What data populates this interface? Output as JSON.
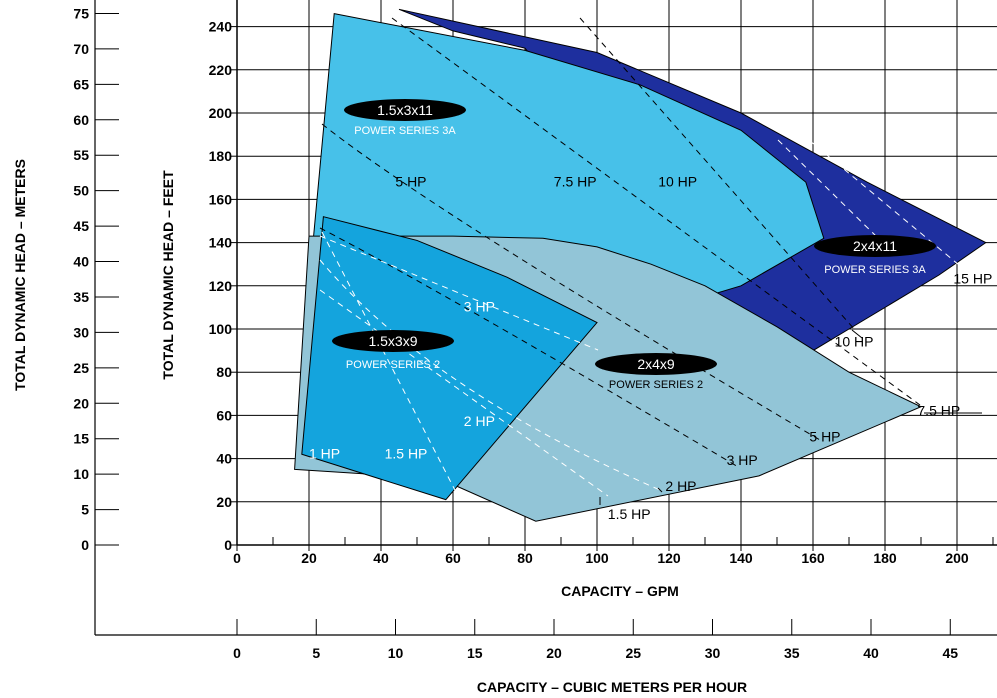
{
  "chart_data": {
    "type": "area",
    "xlabel": "CAPACITY – GPM",
    "ylabel": "TOTAL DYNAMIC HEAD – FEET",
    "secondary_xlabel": "CAPACITY – CUBIC METERS PER HOUR",
    "secondary_ylabel": "TOTAL DYNAMIC HEAD – METERS",
    "xlim": [
      0,
      210
    ],
    "ylim": [
      0,
      250
    ],
    "grid": true,
    "x_ticks": [
      "0",
      "20",
      "40",
      "60",
      "80",
      "100",
      "120",
      "140",
      "160",
      "180",
      "200"
    ],
    "y_ticks": [
      "0",
      "20",
      "40",
      "60",
      "80",
      "100",
      "120",
      "140",
      "160",
      "180",
      "200",
      "220",
      "240"
    ],
    "meters_ticks": [
      "0",
      "5",
      "10",
      "15",
      "20",
      "25",
      "30",
      "35",
      "40",
      "45",
      "50",
      "55",
      "60",
      "65",
      "70",
      "75"
    ],
    "m3h_ticks": [
      "0",
      "5",
      "10",
      "15",
      "20",
      "25",
      "30",
      "35",
      "40",
      "45"
    ],
    "regions": [
      {
        "model": "2x4x11",
        "series": "POWER SERIES 3A",
        "color": "#1e2f9e",
        "outline": [
          [
            45,
            248
          ],
          [
            100,
            228
          ],
          [
            140,
            200
          ],
          [
            175,
            168
          ],
          [
            208,
            140
          ],
          [
            195,
            125
          ],
          [
            170,
            100
          ],
          [
            160,
            90
          ],
          [
            150,
            90
          ],
          [
            140,
            92
          ],
          [
            130,
            100
          ],
          [
            120,
            120
          ],
          [
            100,
            160
          ],
          [
            90,
            210
          ],
          [
            80,
            230
          ],
          [
            60,
            238
          ]
        ]
      },
      {
        "model": "1.5x3x11",
        "series": "POWER SERIES 3A",
        "color": "#47c1e9",
        "outline": [
          [
            27,
            246
          ],
          [
            80,
            229
          ],
          [
            112,
            213
          ],
          [
            140,
            192
          ],
          [
            158,
            168
          ],
          [
            163,
            142
          ],
          [
            140,
            120
          ],
          [
            110,
            105
          ],
          [
            90,
            100
          ],
          [
            62,
            110
          ],
          [
            40,
            118
          ],
          [
            20,
            120
          ]
        ]
      },
      {
        "model": "2x4x9",
        "series": "POWER SERIES 2",
        "color": "#92c5d7",
        "outline": [
          [
            16,
            35
          ],
          [
            35,
            33
          ],
          [
            60,
            28
          ],
          [
            83,
            11
          ],
          [
            145,
            32
          ],
          [
            190,
            64
          ],
          [
            170,
            80
          ],
          [
            150,
            101
          ],
          [
            130,
            120
          ],
          [
            115,
            130
          ],
          [
            100,
            138
          ],
          [
            85,
            142
          ],
          [
            60,
            143
          ],
          [
            40,
            143
          ],
          [
            20,
            143
          ]
        ]
      },
      {
        "model": "1.5x3x9",
        "series": "POWER SERIES 2",
        "color": "#14a4dd",
        "outline": [
          [
            24,
            152
          ],
          [
            50,
            141
          ],
          [
            75,
            124
          ],
          [
            100,
            103
          ],
          [
            58,
            21
          ],
          [
            18,
            42
          ]
        ]
      }
    ],
    "hp_curves": [
      "1 HP",
      "1.5 HP",
      "2 HP",
      "3 HP",
      "5 HP",
      "7.5 HP",
      "10 HP",
      "15 HP"
    ],
    "hp_labels": [
      {
        "text": "1 HP",
        "x": 20,
        "y": 40,
        "color": "white"
      },
      {
        "text": "1.5 HP",
        "x": 41,
        "y": 40,
        "color": "white"
      },
      {
        "text": "2 HP",
        "x": 63,
        "y": 55,
        "color": "white"
      },
      {
        "text": "3 HP",
        "x": 63,
        "y": 108,
        "color": "white"
      },
      {
        "text": "5 HP",
        "x": 44,
        "y": 166,
        "color": "black"
      },
      {
        "text": "7.5 HP",
        "x": 88,
        "y": 166,
        "color": "black"
      },
      {
        "text": "10 HP",
        "x": 117,
        "y": 166,
        "color": "black"
      },
      {
        "text": "1.5 HP",
        "x": 103,
        "y": 12,
        "color": "black"
      },
      {
        "text": "2 HP",
        "x": 119,
        "y": 25,
        "color": "black"
      },
      {
        "text": "3 HP",
        "x": 136,
        "y": 37,
        "color": "black"
      },
      {
        "text": "5 HP",
        "x": 159,
        "y": 48,
        "color": "black"
      },
      {
        "text": "7.5 HP",
        "x": 189,
        "y": 60,
        "color": "black"
      },
      {
        "text": "10 HP",
        "x": 166,
        "y": 92,
        "color": "black"
      },
      {
        "text": "15 HP",
        "x": 199,
        "y": 121,
        "color": "black"
      }
    ]
  }
}
